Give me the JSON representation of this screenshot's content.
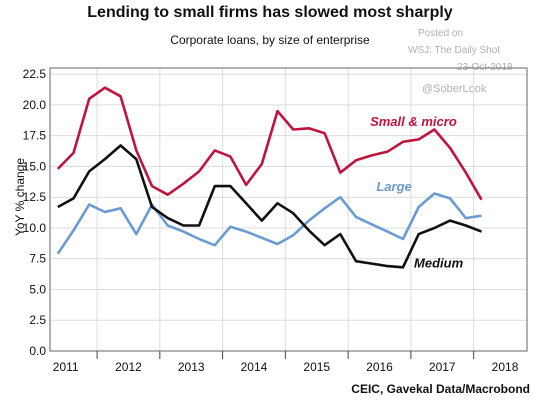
{
  "title": "Lending to small firms has slowed most sharply",
  "subtitle": "Corporate loans, by size of enterprise",
  "watermark": {
    "line1": "Posted on",
    "line2": "WSJ: The Daily Shot",
    "line3": "23-Oct-2018",
    "handle": "@SoberLook"
  },
  "source": "CEIC, Gavekal Data/Macrobond",
  "chart_data": {
    "type": "line",
    "xlabel": "",
    "ylabel": "YoY % change",
    "xlim": [
      2010.75,
      2018.35
    ],
    "ylim": [
      0,
      23
    ],
    "yticks": [
      "0.0",
      "2.5",
      "5.0",
      "7.5",
      "10.0",
      "12.5",
      "15.0",
      "17.5",
      "20.0",
      "22.5"
    ],
    "xticks": [
      2011,
      2012,
      2013,
      2014,
      2015,
      2016,
      2017,
      2018
    ],
    "grid": true,
    "series": [
      {
        "name": "Small & micro",
        "color": "#c0143c",
        "x": [
          2010.875,
          2011.125,
          2011.375,
          2011.625,
          2011.875,
          2012.125,
          2012.375,
          2012.625,
          2012.875,
          2013.125,
          2013.375,
          2013.625,
          2013.875,
          2014.125,
          2014.375,
          2014.625,
          2014.875,
          2015.125,
          2015.375,
          2015.625,
          2015.875,
          2016.125,
          2016.375,
          2016.625,
          2016.875,
          2017.125,
          2017.375,
          2017.625,
          2017.875,
          2018.125
        ],
        "y": [
          14.8,
          16.1,
          20.5,
          21.4,
          20.7,
          16.3,
          13.4,
          12.7,
          13.6,
          14.6,
          16.3,
          15.8,
          13.5,
          15.2,
          19.5,
          18.0,
          18.1,
          17.7,
          14.5,
          15.5,
          15.9,
          16.2,
          17.0,
          17.2,
          18.0,
          16.5,
          14.5,
          12.3,
          null,
          null
        ]
      },
      {
        "name": "Large",
        "color": "#6b9bd1",
        "x": [
          2010.875,
          2011.125,
          2011.375,
          2011.625,
          2011.875,
          2012.125,
          2012.375,
          2012.625,
          2012.875,
          2013.125,
          2013.375,
          2013.625,
          2013.875,
          2014.125,
          2014.375,
          2014.625,
          2014.875,
          2015.125,
          2015.375,
          2015.625,
          2015.875,
          2016.125,
          2016.375,
          2016.625,
          2016.875,
          2017.125,
          2017.375,
          2017.625,
          2017.875,
          2018.125
        ],
        "y": [
          7.9,
          9.8,
          11.9,
          11.3,
          11.6,
          9.5,
          11.9,
          10.2,
          9.7,
          9.1,
          8.6,
          10.1,
          9.7,
          9.2,
          8.7,
          9.4,
          10.6,
          11.6,
          12.5,
          10.9,
          10.3,
          9.7,
          9.1,
          11.7,
          12.8,
          12.4,
          10.8,
          11.0,
          null,
          null
        ]
      },
      {
        "name": "Medium",
        "color": "#111111",
        "x": [
          2010.875,
          2011.125,
          2011.375,
          2011.625,
          2011.875,
          2012.125,
          2012.375,
          2012.625,
          2012.875,
          2013.125,
          2013.375,
          2013.625,
          2013.875,
          2014.125,
          2014.375,
          2014.625,
          2014.875,
          2015.125,
          2015.375,
          2015.625,
          2015.875,
          2016.125,
          2016.375,
          2016.625,
          2016.875,
          2017.125,
          2017.375,
          2017.625,
          2017.875,
          2018.125
        ],
        "y": [
          11.7,
          12.4,
          14.6,
          15.6,
          16.7,
          15.6,
          11.7,
          10.8,
          10.2,
          10.2,
          13.4,
          13.4,
          12.0,
          10.6,
          12.0,
          11.2,
          9.8,
          8.6,
          9.5,
          7.3,
          7.1,
          6.9,
          6.8,
          9.5,
          10.0,
          10.6,
          10.2,
          9.7,
          null,
          null
        ]
      }
    ],
    "series_labels": [
      {
        "text": "Small & micro",
        "color": "#c0143c",
        "x": 2015.85,
        "y": 18.3
      },
      {
        "text": "Large",
        "color": "#6b9bd1",
        "x": 2015.95,
        "y": 13.0
      },
      {
        "text": "Medium",
        "color": "#111111",
        "x": 2016.55,
        "y": 6.8
      }
    ]
  }
}
